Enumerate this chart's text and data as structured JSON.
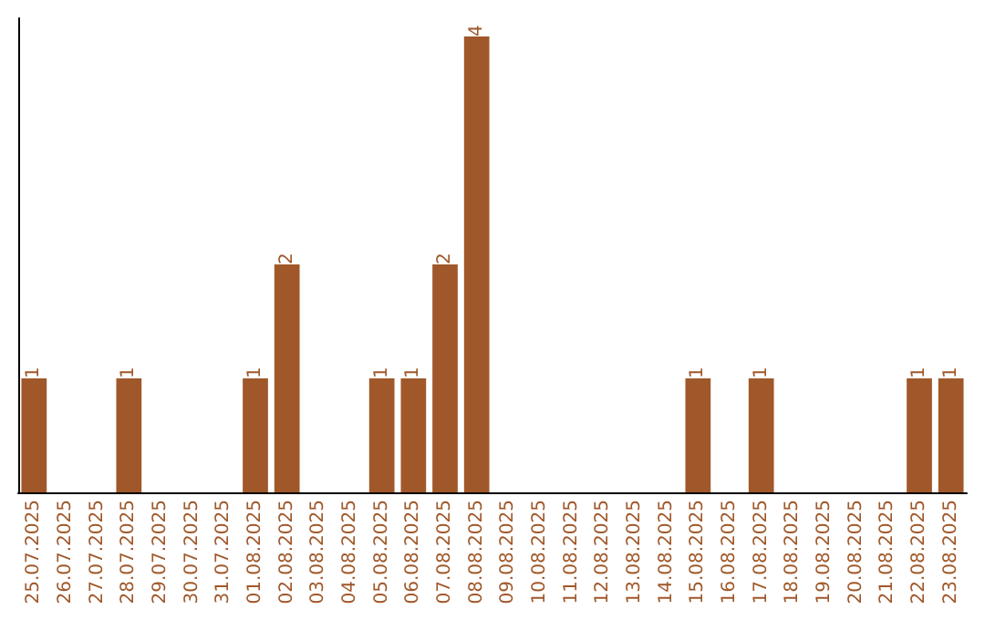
{
  "chart_data": {
    "type": "bar",
    "categories": [
      "25.07.2025",
      "26.07.2025",
      "27.07.2025",
      "28.07.2025",
      "29.07.2025",
      "30.07.2025",
      "31.07.2025",
      "01.08.2025",
      "02.08.2025",
      "03.08.2025",
      "04.08.2025",
      "05.08.2025",
      "06.08.2025",
      "07.08.2025",
      "08.08.2025",
      "09.08.2025",
      "10.08.2025",
      "11.08.2025",
      "12.08.2025",
      "13.08.2025",
      "14.08.2025",
      "15.08.2025",
      "16.08.2025",
      "17.08.2025",
      "18.08.2025",
      "19.08.2025",
      "20.08.2025",
      "21.08.2025",
      "22.08.2025",
      "23.08.2025"
    ],
    "values": [
      1,
      0,
      0,
      1,
      0,
      0,
      0,
      1,
      2,
      0,
      0,
      1,
      1,
      2,
      4,
      0,
      0,
      0,
      0,
      0,
      0,
      1,
      0,
      1,
      0,
      0,
      0,
      0,
      1,
      1
    ],
    "value_labels": [
      "1",
      null,
      null,
      "1",
      null,
      null,
      null,
      "1",
      "2",
      null,
      null,
      "1",
      "1",
      "2",
      "4",
      null,
      null,
      null,
      null,
      null,
      null,
      "1",
      null,
      "1",
      null,
      null,
      null,
      null,
      "1",
      "1"
    ],
    "color": "#a0582a"
  }
}
